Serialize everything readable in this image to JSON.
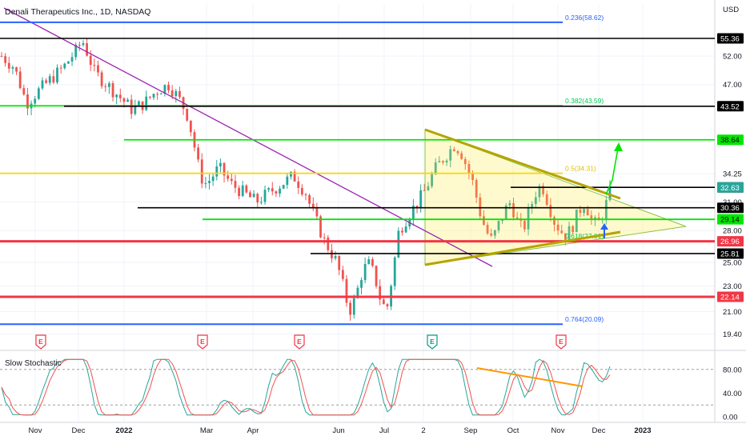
{
  "title": "Denali Therapeutics Inc., 1D, NASDAQ",
  "currency": "USD",
  "colors": {
    "up": "#26a69a",
    "down": "#ef5350",
    "blue": "#2962ff",
    "green": "#00e600",
    "red": "#f23645",
    "yellow": "#ffeb3b",
    "purple": "#9c27b0",
    "olive": "#b5a400",
    "black": "#000000",
    "orange": "#ff9800",
    "stochK": "#26a69a",
    "stochD": "#ef5350"
  },
  "chart_data": [
    {
      "type": "candlestick",
      "title": "Denali Therapeutics Inc., 1D, NASDAQ",
      "yscale": "log",
      "ylim": [
        19.0,
        62.0
      ],
      "y_ticks": [
        "52.00",
        "47.00",
        "34.25",
        "31.00",
        "28.00",
        "25.00",
        "23.00",
        "21.00",
        "19.40"
      ],
      "x_ticks": [
        "Nov",
        "Dec",
        "2022",
        "Mar",
        "Apr",
        "Jun",
        "Jul",
        "2",
        "Sep",
        "Oct",
        "Nov",
        "Dec",
        "2023"
      ],
      "horizontal_levels": [
        {
          "value": 58.62,
          "label": "0.236(58.62)",
          "color": "blue"
        },
        {
          "value": 55.36,
          "label": "55.36",
          "color": "black"
        },
        {
          "value": 43.59,
          "label": "0.382(43.59)",
          "color": "green"
        },
        {
          "value": 43.52,
          "label": "43.52",
          "color": "black"
        },
        {
          "value": 38.64,
          "label": "38.64",
          "color": "green"
        },
        {
          "value": 34.31,
          "label": "0.5(34.31)",
          "color": "yellow"
        },
        {
          "value": 32.64,
          "label": "32.64",
          "color": "black"
        },
        {
          "value": 32.63,
          "label": "32.63",
          "color": "up"
        },
        {
          "value": 30.36,
          "label": "30.36",
          "color": "black"
        },
        {
          "value": 29.14,
          "label": "29.14",
          "color": "green"
        },
        {
          "value": 27.01,
          "label": "0.618(27.01)",
          "color": "green"
        },
        {
          "value": 26.96,
          "label": "26.96",
          "color": "red"
        },
        {
          "value": 25.81,
          "label": "25.81",
          "color": "black"
        },
        {
          "value": 22.14,
          "label": "22.14",
          "color": "red"
        },
        {
          "value": 20.09,
          "label": "0.764(20.09)",
          "color": "blue"
        }
      ],
      "earnings_markers": [
        "E",
        "E",
        "E",
        "E",
        "E"
      ],
      "close_path": [
        [
          0,
          52
        ],
        [
          4,
          50
        ],
        [
          8,
          44
        ],
        [
          12,
          46
        ],
        [
          16,
          48
        ],
        [
          20,
          50
        ],
        [
          24,
          53
        ],
        [
          26,
          55
        ],
        [
          28,
          52
        ],
        [
          30,
          49
        ],
        [
          34,
          47
        ],
        [
          38,
          45
        ],
        [
          42,
          43
        ],
        [
          46,
          44
        ],
        [
          50,
          46
        ],
        [
          54,
          47
        ],
        [
          58,
          44
        ],
        [
          60,
          42
        ],
        [
          62,
          38
        ],
        [
          64,
          34
        ],
        [
          66,
          33
        ],
        [
          68,
          34
        ],
        [
          70,
          35
        ],
        [
          74,
          33
        ],
        [
          78,
          32
        ],
        [
          82,
          31
        ],
        [
          86,
          32
        ],
        [
          90,
          33
        ],
        [
          94,
          34
        ],
        [
          98,
          32
        ],
        [
          100,
          30
        ],
        [
          104,
          27
        ],
        [
          108,
          25
        ],
        [
          110,
          23
        ],
        [
          112,
          21
        ],
        [
          114,
          22
        ],
        [
          116,
          24
        ],
        [
          118,
          25
        ],
        [
          120,
          24
        ],
        [
          122,
          22
        ],
        [
          124,
          21
        ],
        [
          126,
          24
        ],
        [
          128,
          28
        ],
        [
          132,
          30
        ],
        [
          136,
          32
        ],
        [
          140,
          35
        ],
        [
          144,
          37
        ],
        [
          146,
          38
        ],
        [
          148,
          37
        ],
        [
          150,
          35
        ],
        [
          152,
          33
        ],
        [
          154,
          30
        ],
        [
          156,
          28
        ],
        [
          158,
          27
        ],
        [
          160,
          28.5
        ],
        [
          162,
          30
        ],
        [
          164,
          31
        ],
        [
          166,
          29
        ],
        [
          168,
          28
        ],
        [
          170,
          30
        ],
        [
          172,
          32
        ],
        [
          174,
          33
        ],
        [
          176,
          31
        ],
        [
          178,
          29
        ],
        [
          180,
          28
        ],
        [
          182,
          27.5
        ],
        [
          184,
          28.5
        ],
        [
          186,
          30
        ],
        [
          188,
          31
        ],
        [
          190,
          29
        ],
        [
          192,
          28.5
        ],
        [
          194,
          30
        ],
        [
          196,
          32
        ]
      ]
    },
    {
      "type": "line",
      "title": "Slow Stochastic",
      "ylim": [
        0,
        100
      ],
      "y_ticks": [
        "80.00",
        "40.00",
        "0.00"
      ],
      "series": [
        {
          "values": []
        },
        {
          "values": []
        }
      ],
      "overbought": 80,
      "oversold": 20
    }
  ]
}
